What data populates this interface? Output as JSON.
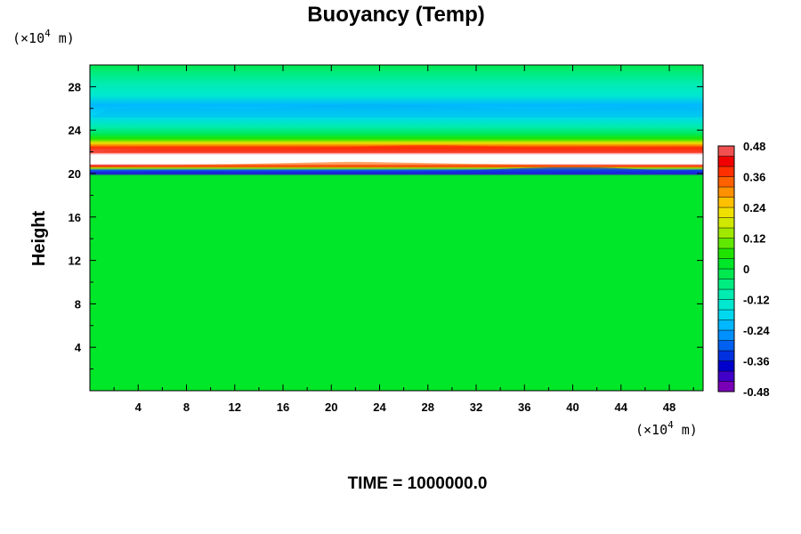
{
  "chart_data": {
    "type": "heatmap",
    "title": "Buoyancy (Temp)",
    "ylabel": "Height",
    "x_unit_prefix": "(×10",
    "x_unit_exp": "4",
    "x_unit_suffix": " m)",
    "y_unit_prefix": "(×10",
    "y_unit_exp": "4",
    "y_unit_suffix": " m)",
    "xlim": [
      0,
      50.8
    ],
    "ylim": [
      0,
      30
    ],
    "x_ticks": [
      4,
      8,
      12,
      16,
      20,
      24,
      28,
      32,
      36,
      40,
      44,
      48
    ],
    "y_ticks": [
      4,
      8,
      12,
      16,
      20,
      24,
      28
    ],
    "x_tick_labels": [
      "4",
      "8",
      "12",
      "16",
      "20",
      "24",
      "28",
      "32",
      "36",
      "40",
      "44",
      "48"
    ],
    "y_tick_labels": [
      "4",
      "8",
      "12",
      "16",
      "20",
      "24",
      "28"
    ],
    "colorbar": {
      "range": [
        -0.48,
        0.48
      ],
      "step": 0.04,
      "tick_labels": [
        "0.48",
        "0.36",
        "0.24",
        "0.12",
        "0",
        "-0.12",
        "-0.24",
        "-0.36",
        "-0.48"
      ],
      "colors_low_to_high": [
        "#7a00b8",
        "#4000c8",
        "#0000cc",
        "#0030e0",
        "#0060f0",
        "#0090ff",
        "#00b8ff",
        "#00d8f0",
        "#00e8d0",
        "#00ecb0",
        "#00ec80",
        "#00e850",
        "#00e628",
        "#20e400",
        "#60e800",
        "#a0e800",
        "#d0e800",
        "#f0e000",
        "#ffc000",
        "#ff9000",
        "#ff6000",
        "#ff3000",
        "#f00000",
        "#f05050"
      ]
    },
    "profile": [
      {
        "height": 0,
        "value": 0.0
      },
      {
        "height": 19.8,
        "value": 0.0
      },
      {
        "height": 20.0,
        "value": -0.4
      },
      {
        "height": 20.3,
        "value": -0.28
      },
      {
        "height": 20.5,
        "value": 0.12
      },
      {
        "height": 20.7,
        "value": 0.4
      },
      {
        "height": 20.9,
        "value": 0.6
      },
      {
        "height": 21.7,
        "value": 0.6
      },
      {
        "height": 22.0,
        "value": 0.44
      },
      {
        "height": 22.4,
        "value": 0.36
      },
      {
        "height": 22.8,
        "value": 0.2
      },
      {
        "height": 23.2,
        "value": 0.08
      },
      {
        "height": 23.6,
        "value": -0.04
      },
      {
        "height": 24.3,
        "value": -0.12
      },
      {
        "height": 25.3,
        "value": -0.18
      },
      {
        "height": 26.3,
        "value": -0.2
      },
      {
        "height": 27.2,
        "value": -0.16
      },
      {
        "height": 28.3,
        "value": -0.12
      },
      {
        "height": 29.2,
        "value": -0.08
      },
      {
        "height": 30.0,
        "value": -0.04
      }
    ],
    "time_label": "TIME = 1000000.0"
  }
}
